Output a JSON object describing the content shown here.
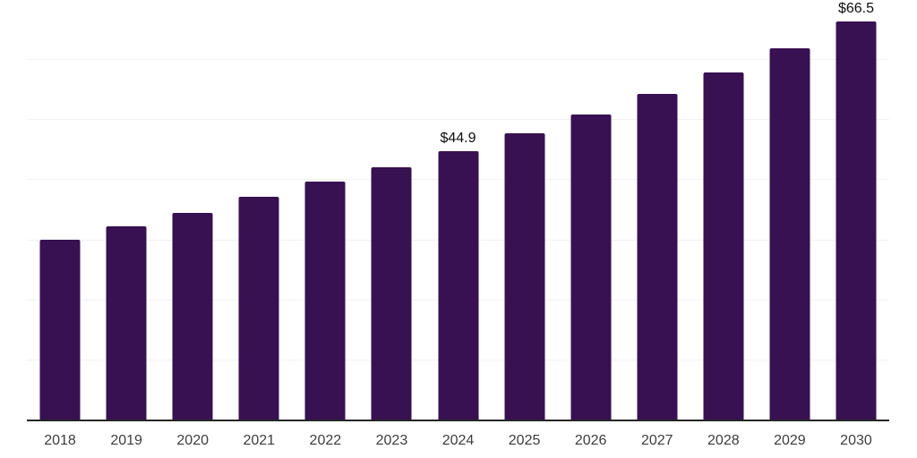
{
  "chart_data": {
    "type": "bar",
    "title": "",
    "xlabel": "",
    "ylabel": "",
    "categories": [
      "2018",
      "2019",
      "2020",
      "2021",
      "2022",
      "2023",
      "2024",
      "2025",
      "2026",
      "2027",
      "2028",
      "2029",
      "2030"
    ],
    "values": [
      30.1,
      32.3,
      34.6,
      37.3,
      39.7,
      42.1,
      44.9,
      47.8,
      51.0,
      54.4,
      57.9,
      62.0,
      66.5
    ],
    "value_labels": [
      "",
      "",
      "",
      "",
      "",
      "",
      "$44.9",
      "",
      "",
      "",
      "",
      "",
      "$66.5"
    ],
    "ylim": [
      0,
      70
    ],
    "gridline_step": 10,
    "grid": "horizontal-only",
    "y_tick_labels_visible": false,
    "legend": "none",
    "colors": {
      "bar": "#371151",
      "gridline": "#F2F2F2",
      "axis_line": "#262626",
      "x_tick_label": "#3D3D3D",
      "value_label": "#0D0D0D",
      "background": "#FFFFFF"
    }
  }
}
